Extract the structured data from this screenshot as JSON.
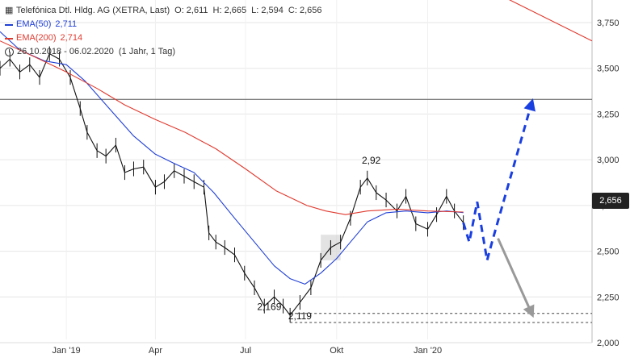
{
  "header": {
    "title": "Telefónica Dtl. Hldg. AG (XETRA, Last)",
    "open": "O: 2,611",
    "high": "H: 2,665",
    "low": "L: 2,594",
    "close": "C: 2,656",
    "ema50_label": "EMA(50)",
    "ema50_value": "2,711",
    "ema200_label": "EMA(200)",
    "ema200_value": "2,714",
    "period": "26.10.2018 - 06.02.2020",
    "interval": "(1 Jahr, 1 Tag)"
  },
  "price_tag": "2,656",
  "colors": {
    "price": "#111111",
    "ema50": "#1f3fd6",
    "ema200": "#e03a2f",
    "projection_up": "#1a3fe0",
    "projection_down": "#999999",
    "grid": "#e6e6e6"
  },
  "chart_data": {
    "type": "line",
    "title": "Telefónica Dtl. Hldg. AG (XETRA, Last)",
    "ylim": [
      2.0,
      3.75
    ],
    "y_ticks": [
      "2,000",
      "2,250",
      "2,500",
      "2,750",
      "3,000",
      "3,250",
      "3,500",
      "3,750"
    ],
    "y_tick_values": [
      2.0,
      2.25,
      2.5,
      2.75,
      3.0,
      3.25,
      3.5,
      3.75
    ],
    "x_ticks": [
      "Jan '19",
      "Apr",
      "Jul",
      "Okt",
      "Jan '20"
    ],
    "x_tick_dates": [
      "2019-01-01",
      "2019-04-01",
      "2019-07-01",
      "2019-10-01",
      "2020-01-01"
    ],
    "x_range": [
      "2018-10-26",
      "2020-06-15"
    ],
    "series": [
      {
        "name": "Telefónica Dtl. Hldg. AG",
        "style": "price",
        "x": [
          "2018-10-26",
          "2018-11-05",
          "2018-11-15",
          "2018-11-25",
          "2018-12-05",
          "2018-12-15",
          "2018-12-25",
          "2019-01-05",
          "2019-01-15",
          "2019-01-22",
          "2019-02-01",
          "2019-02-10",
          "2019-02-20",
          "2019-03-01",
          "2019-03-10",
          "2019-03-20",
          "2019-04-01",
          "2019-04-10",
          "2019-04-20",
          "2019-04-30",
          "2019-05-10",
          "2019-05-20",
          "2019-05-25",
          "2019-06-01",
          "2019-06-10",
          "2019-06-20",
          "2019-06-30",
          "2019-07-10",
          "2019-07-20",
          "2019-07-30",
          "2019-08-08",
          "2019-08-15",
          "2019-08-25",
          "2019-09-05",
          "2019-09-15",
          "2019-09-25",
          "2019-10-05",
          "2019-10-15",
          "2019-10-25",
          "2019-11-01",
          "2019-11-10",
          "2019-11-20",
          "2019-12-01",
          "2019-12-10",
          "2019-12-20",
          "2020-01-01",
          "2020-01-10",
          "2020-01-20",
          "2020-01-28",
          "2020-02-06"
        ],
        "y": [
          3.5,
          3.55,
          3.48,
          3.52,
          3.45,
          3.58,
          3.55,
          3.45,
          3.28,
          3.15,
          3.05,
          3.02,
          3.08,
          2.93,
          2.95,
          2.96,
          2.85,
          2.88,
          2.94,
          2.91,
          2.88,
          2.85,
          2.6,
          2.55,
          2.52,
          2.48,
          2.38,
          2.3,
          2.2,
          2.25,
          2.2,
          2.15,
          2.22,
          2.3,
          2.45,
          2.52,
          2.55,
          2.68,
          2.85,
          2.9,
          2.82,
          2.78,
          2.72,
          2.8,
          2.65,
          2.62,
          2.7,
          2.8,
          2.72,
          2.656
        ]
      },
      {
        "name": "EMA(50)",
        "style": "ema50",
        "x": [
          "2018-10-26",
          "2018-11-15",
          "2018-12-10",
          "2019-01-01",
          "2019-01-20",
          "2019-02-15",
          "2019-03-10",
          "2019-04-01",
          "2019-04-20",
          "2019-05-10",
          "2019-05-30",
          "2019-06-20",
          "2019-07-10",
          "2019-07-30",
          "2019-08-15",
          "2019-08-30",
          "2019-09-15",
          "2019-10-01",
          "2019-10-15",
          "2019-11-01",
          "2019-11-20",
          "2019-12-10",
          "2020-01-01",
          "2020-01-20",
          "2020-02-06"
        ],
        "y": [
          3.7,
          3.6,
          3.54,
          3.52,
          3.43,
          3.27,
          3.13,
          3.03,
          2.98,
          2.93,
          2.82,
          2.68,
          2.55,
          2.42,
          2.35,
          2.32,
          2.38,
          2.46,
          2.55,
          2.66,
          2.71,
          2.72,
          2.71,
          2.72,
          2.711
        ]
      },
      {
        "name": "EMA(200)",
        "style": "ema200",
        "x": [
          "2018-10-26",
          "2018-12-01",
          "2019-01-01",
          "2019-02-01",
          "2019-03-01",
          "2019-04-01",
          "2019-05-01",
          "2019-06-01",
          "2019-07-01",
          "2019-08-01",
          "2019-09-01",
          "2019-09-20",
          "2019-10-10",
          "2019-11-01",
          "2019-12-01",
          "2020-01-01",
          "2020-02-06"
        ],
        "y": [
          3.65,
          3.56,
          3.48,
          3.39,
          3.3,
          3.22,
          3.15,
          3.06,
          2.95,
          2.83,
          2.75,
          2.72,
          2.7,
          2.72,
          2.73,
          2.72,
          2.714
        ]
      },
      {
        "name": "",
        "style": "ema200",
        "x": [
          "2020-02-06",
          "2020-06-15"
        ],
        "y": [
          4.0,
          3.65
        ]
      }
    ],
    "projection_up": {
      "x": [
        "2020-02-06",
        "2020-02-12",
        "2020-02-20",
        "2020-03-01",
        "2020-03-07",
        "2020-04-15"
      ],
      "y": [
        2.656,
        2.55,
        2.77,
        2.45,
        2.57,
        3.31
      ]
    },
    "projection_down": {
      "x": [
        "2020-03-12",
        "2020-04-15"
      ],
      "y": [
        2.57,
        2.16
      ]
    },
    "reference_lines": [
      {
        "y": 3.33,
        "style": "solid",
        "from": "2018-10-26",
        "to": "2020-06-15"
      },
      {
        "y": 2.16,
        "style": "dashed",
        "from": "2019-08-15",
        "to": "2020-06-15"
      },
      {
        "y": 2.11,
        "style": "dashed",
        "from": "2019-08-15",
        "to": "2020-06-15"
      }
    ],
    "highlight_box": {
      "x": [
        "2019-09-15",
        "2019-10-05"
      ],
      "y": [
        2.45,
        2.59
      ]
    },
    "annotations": [
      {
        "text": "2,92",
        "x": "2019-11-05",
        "y": 2.96
      },
      {
        "text": "2,169",
        "x": "2019-07-25",
        "y": 2.16
      },
      {
        "text": "2,119",
        "x": "2019-08-25",
        "y": 2.11
      }
    ]
  }
}
